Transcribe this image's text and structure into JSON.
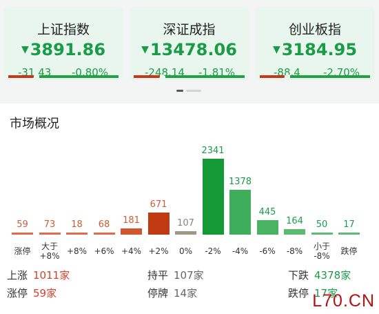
{
  "indices": [
    {
      "name": "上证指数",
      "value": "3891.86",
      "change": "-31.43",
      "pct": "-0.80%",
      "red_ratio": 0.22
    },
    {
      "name": "深证成指",
      "value": "13478.06",
      "change": "-248.14",
      "pct": "-1.81%",
      "red_ratio": 0.22
    },
    {
      "name": "创业板指",
      "value": "3184.95",
      "change": "-88.4",
      "pct": "-2.70%",
      "red_ratio": 0.22
    }
  ],
  "market": {
    "title": "市场概况",
    "stats": {
      "up_label": "上涨",
      "up_value": "1011家",
      "flat_label": "持平",
      "flat_value": "107家",
      "down_label": "下跌",
      "down_value": "4378家",
      "limit_up_label": "涨停",
      "limit_up_value": "59家",
      "halt_label": "停牌",
      "halt_value": "14家",
      "limit_down_label": "跌停",
      "limit_down_value": "17家"
    }
  },
  "chart_data": {
    "type": "bar",
    "categories": [
      "涨停",
      "大于\n+8%",
      "+8%",
      "+6%",
      "+4%",
      "+2%",
      "0%",
      "-2%",
      "-4%",
      "-6%",
      "-8%",
      "小于\n-8%",
      "跌停"
    ],
    "values": [
      59,
      73,
      18,
      68,
      181,
      671,
      107,
      2341,
      1378,
      445,
      164,
      50,
      17
    ],
    "colors": [
      "#e06a4a",
      "#e06a4a",
      "#e06a4a",
      "#e06a4a",
      "#d0562f",
      "#bf3a12",
      "#a09684",
      "#139a36",
      "#3fae5b",
      "#48b463",
      "#5cbb73",
      "#5cbb73",
      "#5cbb73"
    ],
    "value_colors": [
      "#d05a36",
      "#d05a36",
      "#d05a36",
      "#d05a36",
      "#d05a36",
      "#d05a36",
      "#8a8377",
      "#1a9b48",
      "#1a9b48",
      "#1a9b48",
      "#1a9b48",
      "#1a9b48",
      "#1a9b48"
    ]
  },
  "watermark": "L70.CN",
  "colors": {
    "up": "#d6402b",
    "down": "#1a9b48",
    "card_bg": "#e9f6ee"
  }
}
